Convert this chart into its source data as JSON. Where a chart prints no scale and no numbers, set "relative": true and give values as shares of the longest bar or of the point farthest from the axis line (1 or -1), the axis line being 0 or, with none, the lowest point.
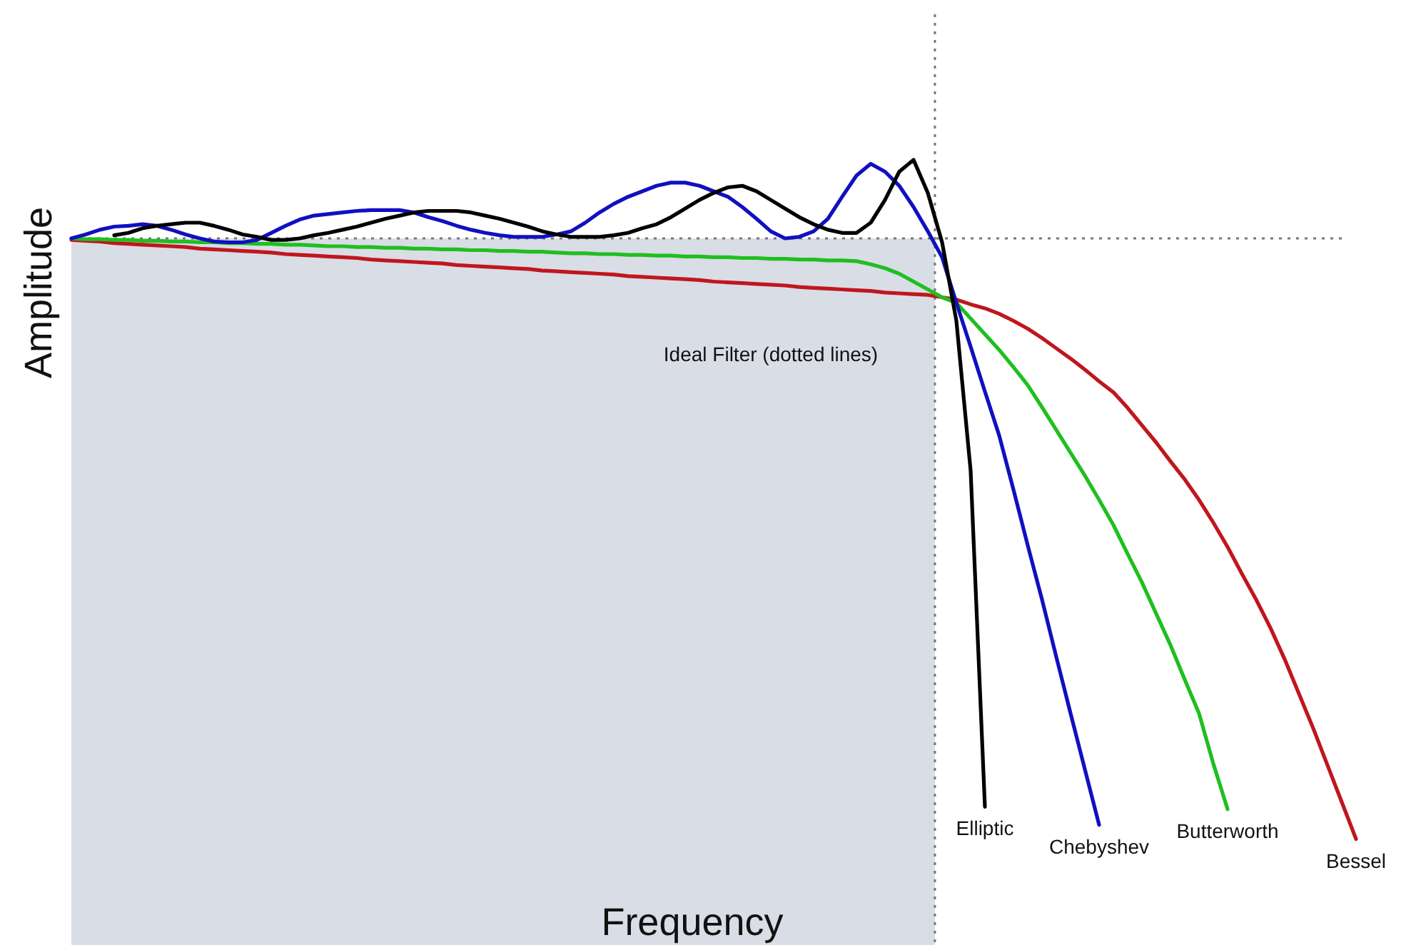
{
  "chart_data": {
    "type": "line",
    "relative": true,
    "xlabel": "Frequency",
    "ylabel": "Amplitude",
    "annotations": [
      "Ideal Filter (dotted lines)"
    ],
    "categories": [
      null,
      null,
      null,
      null,
      null,
      null,
      null,
      null,
      null,
      null,
      null,
      null,
      null,
      null,
      null,
      null,
      null,
      null,
      null,
      null,
      null,
      null,
      null,
      null,
      null,
      null,
      null,
      null,
      null,
      null,
      null,
      null,
      null,
      null,
      null,
      null,
      null,
      null,
      null,
      null,
      null,
      null,
      null,
      null,
      null,
      null,
      null,
      null,
      null,
      null,
      null,
      null,
      null,
      null,
      null,
      null,
      null,
      null,
      null,
      null,
      null,
      null,
      null,
      null,
      null,
      null,
      null,
      null,
      null,
      null,
      null,
      null,
      null,
      null,
      null,
      null,
      null,
      null,
      null,
      null,
      null,
      null,
      null,
      null,
      null,
      null,
      null,
      null,
      null,
      null,
      null
    ],
    "series": [
      {
        "name": "Bessel",
        "color": "#c0161e",
        "values": [
          0.898,
          0.897,
          0.896,
          0.894,
          0.893,
          0.892,
          0.891,
          0.89,
          0.889,
          0.887,
          0.886,
          0.885,
          0.884,
          0.883,
          0.882,
          0.88,
          0.879,
          0.878,
          0.877,
          0.876,
          0.875,
          0.873,
          0.872,
          0.871,
          0.87,
          0.869,
          0.868,
          0.866,
          0.865,
          0.864,
          0.863,
          0.862,
          0.861,
          0.859,
          0.858,
          0.857,
          0.856,
          0.855,
          0.854,
          0.852,
          0.851,
          0.85,
          0.849,
          0.848,
          0.847,
          0.845,
          0.844,
          0.843,
          0.842,
          0.841,
          0.84,
          0.838,
          0.837,
          0.836,
          0.835,
          0.834,
          0.833,
          0.831,
          0.83,
          0.829,
          0.828,
          0.825,
          0.822,
          0.816,
          0.811,
          0.804,
          0.795,
          0.785,
          0.773,
          0.76,
          0.747,
          0.733,
          0.718,
          0.704,
          0.684,
          0.662,
          0.64,
          0.616,
          0.593,
          0.567,
          0.538,
          0.507,
          0.473,
          0.44,
          0.404,
          0.364,
          0.32,
          0.276,
          0.229,
          0.182,
          0.135
        ]
      },
      {
        "name": "Butterworth",
        "color": "#1fbf1f",
        "values": [
          0.9,
          0.899,
          0.899,
          0.898,
          0.898,
          0.897,
          0.897,
          0.896,
          0.896,
          0.895,
          0.895,
          0.894,
          0.894,
          0.893,
          0.893,
          0.892,
          0.892,
          0.891,
          0.89,
          0.89,
          0.889,
          0.889,
          0.888,
          0.888,
          0.887,
          0.887,
          0.886,
          0.886,
          0.885,
          0.885,
          0.884,
          0.884,
          0.883,
          0.883,
          0.882,
          0.881,
          0.881,
          0.88,
          0.88,
          0.879,
          0.879,
          0.878,
          0.878,
          0.877,
          0.877,
          0.876,
          0.876,
          0.875,
          0.875,
          0.874,
          0.874,
          0.873,
          0.873,
          0.872,
          0.872,
          0.871,
          0.867,
          0.862,
          0.855,
          0.845,
          0.835,
          0.825,
          0.818,
          0.798,
          0.778,
          0.758,
          0.736,
          0.713,
          0.685,
          0.656,
          0.627,
          0.598,
          0.567,
          0.535,
          0.498,
          0.462,
          0.422,
          0.382,
          0.338,
          0.295,
          0.231,
          0.173,
          null,
          null,
          null,
          null,
          null,
          null,
          null,
          null,
          null
        ]
      },
      {
        "name": "Chebyshev",
        "color": "#1010c0",
        "values": [
          0.9,
          0.905,
          0.911,
          0.915,
          0.916,
          0.918,
          0.916,
          0.911,
          0.905,
          0.9,
          0.896,
          0.895,
          0.895,
          0.898,
          0.907,
          0.916,
          0.924,
          0.929,
          0.931,
          0.933,
          0.935,
          0.936,
          0.936,
          0.936,
          0.933,
          0.927,
          0.922,
          0.916,
          0.911,
          0.907,
          0.904,
          0.902,
          0.902,
          0.902,
          0.905,
          0.909,
          0.92,
          0.933,
          0.944,
          0.953,
          0.96,
          0.967,
          0.971,
          0.971,
          0.967,
          0.96,
          0.953,
          0.94,
          0.925,
          0.909,
          0.9,
          0.902,
          0.909,
          0.925,
          0.953,
          0.98,
          0.995,
          0.985,
          0.967,
          0.94,
          0.909,
          0.876,
          0.818,
          0.762,
          0.705,
          0.649,
          0.58,
          0.509,
          0.44,
          0.367,
          0.295,
          0.224,
          0.153,
          null,
          null,
          null,
          null,
          null,
          null,
          null,
          null,
          null,
          null,
          null,
          null,
          null,
          null,
          null,
          null,
          null,
          null
        ]
      },
      {
        "name": "Elliptic",
        "color": "#000000",
        "values": [
          null,
          null,
          null,
          0.904,
          0.907,
          0.913,
          0.916,
          0.918,
          0.92,
          0.92,
          0.916,
          0.911,
          0.905,
          0.902,
          0.898,
          0.898,
          0.9,
          0.904,
          0.907,
          0.911,
          0.915,
          0.92,
          0.925,
          0.929,
          0.933,
          0.935,
          0.935,
          0.935,
          0.933,
          0.929,
          0.925,
          0.92,
          0.915,
          0.909,
          0.905,
          0.902,
          0.902,
          0.902,
          0.904,
          0.907,
          0.913,
          0.918,
          0.927,
          0.938,
          0.949,
          0.958,
          0.965,
          0.967,
          0.96,
          0.949,
          0.938,
          0.927,
          0.918,
          0.911,
          0.907,
          0.907,
          0.92,
          0.949,
          0.985,
          1.0,
          0.958,
          0.895,
          0.795,
          0.604,
          0.176,
          null,
          null,
          null,
          null,
          null,
          null,
          null,
          null,
          null,
          null,
          null,
          null,
          null,
          null,
          null,
          null,
          null,
          null,
          null,
          null,
          null,
          null,
          null,
          null,
          null,
          null
        ]
      }
    ],
    "ref_lines": [
      {
        "axis": "y",
        "value": 0.9,
        "color": "#777777",
        "line_style": "dotted"
      }
    ],
    "legend": false,
    "marker": "none",
    "line_style": "solid"
  }
}
